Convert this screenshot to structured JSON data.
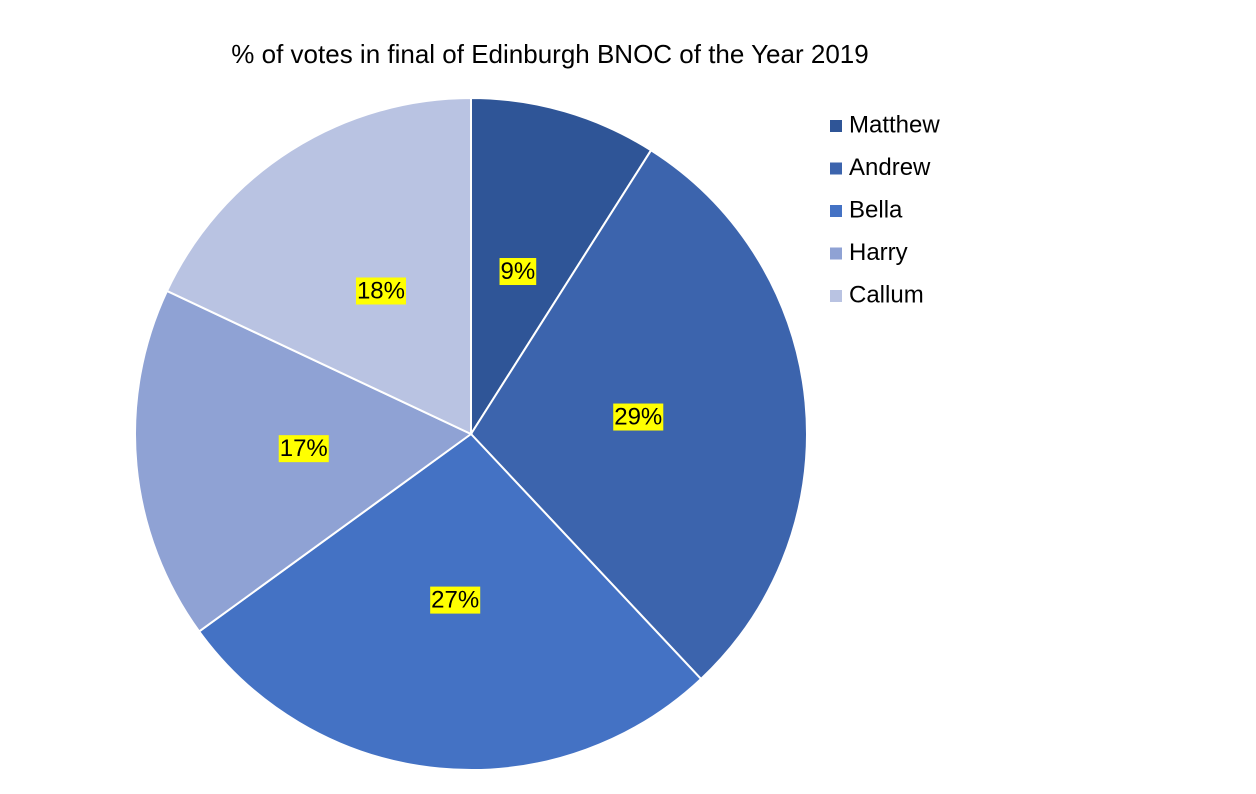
{
  "chart_data": {
    "type": "pie",
    "title": "% of votes in final of Edinburgh BNOC of the Year 2019",
    "categories": [
      "Matthew",
      "Andrew",
      "Bella",
      "Harry",
      "Callum"
    ],
    "values": [
      9,
      29,
      27,
      17,
      18
    ],
    "value_labels": [
      "9%",
      "29%",
      "27%",
      "17%",
      "18%"
    ],
    "colors": [
      "#2f5597",
      "#3c64ad",
      "#4472c4",
      "#8fa2d4",
      "#b9c3e2"
    ],
    "legend": "right"
  }
}
